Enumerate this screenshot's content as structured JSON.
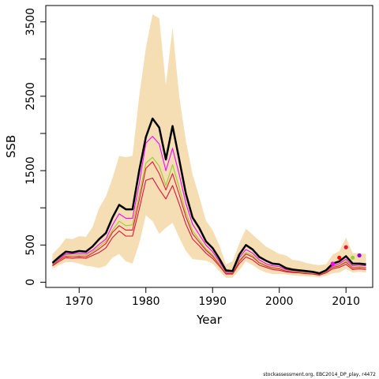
{
  "chart_data": {
    "type": "line",
    "xlabel": "Year",
    "ylabel": "SSB",
    "xlim": [
      1965,
      2014
    ],
    "ylim": [
      -70,
      3720
    ],
    "x_ticks": [
      1970,
      1980,
      1990,
      2000,
      2010
    ],
    "y_ticks": [
      0,
      500,
      1500,
      2500,
      3500
    ],
    "y_minor_ticks": [
      1000,
      2000,
      3000
    ],
    "grid": false,
    "band": {
      "color": "#F5DEB3",
      "x": [
        1966,
        1967,
        1968,
        1969,
        1970,
        1971,
        1972,
        1973,
        1974,
        1975,
        1976,
        1977,
        1978,
        1979,
        1980,
        1981,
        1982,
        1983,
        1984,
        1985,
        1986,
        1987,
        1988,
        1989,
        1990,
        1991,
        1992,
        1993,
        1994,
        1995,
        1996,
        1997,
        1998,
        1999,
        2000,
        2001,
        2002,
        2003,
        2004,
        2005,
        2006,
        2007,
        2008,
        2009,
        2010,
        2011,
        2012,
        2013
      ],
      "upper": [
        380,
        470,
        590,
        580,
        620,
        610,
        740,
        1000,
        1150,
        1400,
        1700,
        1680,
        1700,
        2500,
        3150,
        3600,
        3550,
        2650,
        3420,
        2500,
        1900,
        1450,
        1150,
        830,
        700,
        500,
        240,
        280,
        520,
        720,
        640,
        560,
        480,
        430,
        380,
        360,
        300,
        290,
        260,
        240,
        230,
        240,
        370,
        420,
        600,
        390,
        390,
        380
      ],
      "lower": [
        180,
        230,
        270,
        270,
        250,
        220,
        210,
        190,
        220,
        330,
        380,
        280,
        250,
        520,
        900,
        820,
        650,
        730,
        800,
        600,
        420,
        310,
        300,
        290,
        250,
        150,
        60,
        60,
        160,
        280,
        230,
        170,
        130,
        110,
        110,
        105,
        90,
        85,
        80,
        75,
        65,
        85,
        120,
        130,
        180,
        130,
        140,
        130
      ]
    },
    "series": [
      {
        "color": "#000000",
        "values": [
          260,
          340,
          410,
          400,
          420,
          410,
          480,
          580,
          660,
          870,
          1040,
          980,
          980,
          1500,
          1950,
          2200,
          2080,
          1650,
          2100,
          1650,
          1190,
          870,
          730,
          550,
          460,
          320,
          160,
          150,
          370,
          500,
          440,
          340,
          290,
          250,
          240,
          190,
          170,
          160,
          150,
          140,
          120,
          160,
          250,
          280,
          350,
          250,
          250,
          240
        ]
      },
      {
        "color": "#FF00FF",
        "values": [
          250,
          320,
          380,
          380,
          390,
          380,
          430,
          510,
          580,
          770,
          920,
          860,
          860,
          1320,
          1870,
          1960,
          1860,
          1500,
          1800,
          1450,
          1060,
          780,
          640,
          500,
          410,
          280,
          140,
          140,
          330,
          440,
          390,
          300,
          250,
          220,
          210,
          170,
          160,
          150,
          140,
          130,
          110,
          150,
          220,
          250,
          310,
          220,
          230,
          220
        ]
      },
      {
        "color": "#9ACD32",
        "values": [
          240,
          310,
          370,
          360,
          370,
          360,
          410,
          480,
          550,
          700,
          820,
          760,
          770,
          1180,
          1600,
          1680,
          1560,
          1300,
          1580,
          1270,
          940,
          690,
          570,
          450,
          370,
          250,
          130,
          130,
          300,
          400,
          360,
          270,
          230,
          200,
          190,
          160,
          150,
          140,
          130,
          120,
          110,
          140,
          210,
          230,
          290,
          200,
          210,
          200
        ]
      },
      {
        "color": "#E8173B",
        "values": [
          230,
          300,
          350,
          340,
          350,
          340,
          390,
          450,
          520,
          670,
          760,
          700,
          700,
          1100,
          1530,
          1620,
          1460,
          1240,
          1460,
          1180,
          880,
          650,
          540,
          430,
          350,
          240,
          120,
          120,
          280,
          380,
          340,
          260,
          220,
          190,
          180,
          150,
          140,
          135,
          125,
          115,
          100,
          135,
          200,
          220,
          270,
          190,
          200,
          190
        ]
      },
      {
        "color": "#DC143C",
        "values": [
          220,
          280,
          330,
          320,
          330,
          320,
          360,
          400,
          460,
          600,
          690,
          620,
          620,
          980,
          1370,
          1400,
          1250,
          1120,
          1300,
          1050,
          780,
          580,
          490,
          390,
          320,
          220,
          110,
          110,
          250,
          340,
          300,
          230,
          200,
          170,
          160,
          140,
          130,
          125,
          115,
          110,
          95,
          125,
          180,
          200,
          240,
          170,
          180,
          170
        ]
      }
    ],
    "points": [
      {
        "x": 2008,
        "y": 250,
        "color": "#FF00FF"
      },
      {
        "x": 2009,
        "y": 330,
        "color": "#FF0000"
      },
      {
        "x": 2010,
        "y": 470,
        "color": "#E8173B"
      },
      {
        "x": 2011,
        "y": 330,
        "color": "#9ACD32"
      },
      {
        "x": 2012,
        "y": 360,
        "color": "#9400D3"
      }
    ]
  },
  "footer_text": "stockassessment.org, EBC2014_DP_play, r4472"
}
